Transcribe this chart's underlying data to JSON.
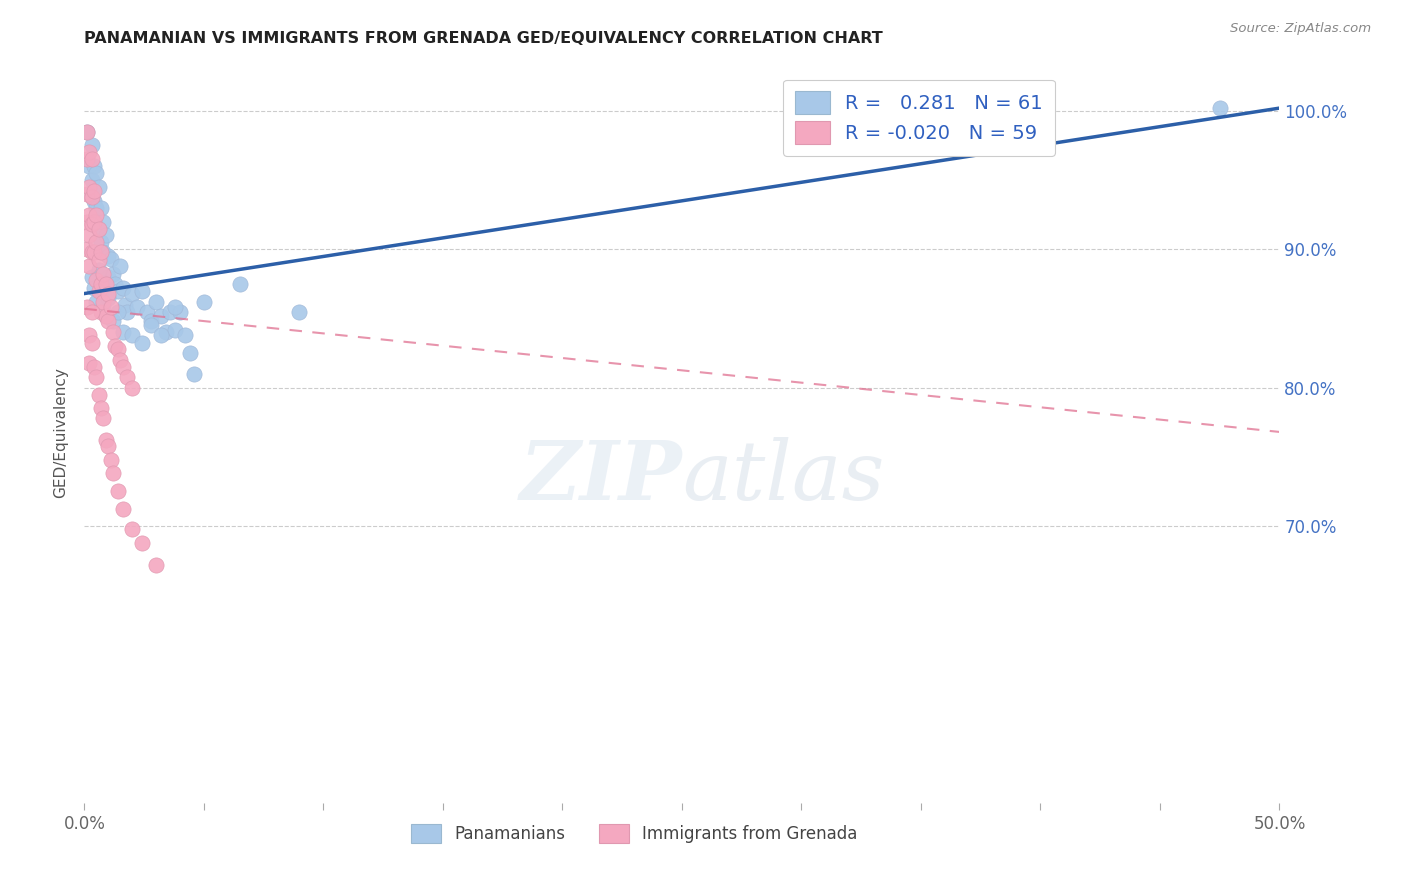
{
  "title": "PANAMANIAN VS IMMIGRANTS FROM GRENADA GED/EQUIVALENCY CORRELATION CHART",
  "source": "Source: ZipAtlas.com",
  "ylabel": "GED/Equivalency",
  "xlim": [
    0.0,
    0.5
  ],
  "ylim": [
    0.5,
    1.035
  ],
  "blue_color": "#a8c8e8",
  "pink_color": "#f4a8c0",
  "blue_line_color": "#2c5fa8",
  "pink_line_color": "#e07090",
  "watermark_zip": "ZIP",
  "watermark_atlas": "atlas",
  "blue_r": 0.281,
  "blue_n": 61,
  "pink_r": -0.02,
  "pink_n": 59,
  "blue_line_y0": 0.868,
  "blue_line_y1": 1.002,
  "pink_line_y0": 0.857,
  "pink_line_y1": 0.768,
  "blue_x": [
    0.001,
    0.002,
    0.002,
    0.003,
    0.003,
    0.004,
    0.004,
    0.005,
    0.005,
    0.006,
    0.006,
    0.007,
    0.007,
    0.008,
    0.008,
    0.009,
    0.01,
    0.01,
    0.011,
    0.012,
    0.013,
    0.014,
    0.015,
    0.016,
    0.017,
    0.018,
    0.02,
    0.022,
    0.024,
    0.026,
    0.028,
    0.03,
    0.032,
    0.034,
    0.036,
    0.038,
    0.04,
    0.042,
    0.044,
    0.046,
    0.003,
    0.004,
    0.005,
    0.006,
    0.007,
    0.008,
    0.009,
    0.01,
    0.012,
    0.014,
    0.016,
    0.02,
    0.024,
    0.028,
    0.032,
    0.038,
    0.05,
    0.065,
    0.09,
    0.34,
    0.475
  ],
  "blue_y": [
    0.985,
    0.96,
    0.94,
    0.975,
    0.95,
    0.96,
    0.935,
    0.955,
    0.93,
    0.945,
    0.915,
    0.93,
    0.905,
    0.92,
    0.898,
    0.91,
    0.895,
    0.88,
    0.893,
    0.882,
    0.875,
    0.87,
    0.888,
    0.872,
    0.86,
    0.855,
    0.868,
    0.858,
    0.87,
    0.855,
    0.848,
    0.862,
    0.852,
    0.84,
    0.855,
    0.842,
    0.855,
    0.838,
    0.825,
    0.81,
    0.88,
    0.872,
    0.862,
    0.885,
    0.87,
    0.86,
    0.852,
    0.865,
    0.848,
    0.855,
    0.84,
    0.838,
    0.832,
    0.845,
    0.838,
    0.858,
    0.862,
    0.875,
    0.855,
    0.992,
    1.002
  ],
  "pink_x": [
    0.001,
    0.001,
    0.001,
    0.001,
    0.001,
    0.002,
    0.002,
    0.002,
    0.002,
    0.002,
    0.003,
    0.003,
    0.003,
    0.003,
    0.004,
    0.004,
    0.004,
    0.005,
    0.005,
    0.005,
    0.006,
    0.006,
    0.006,
    0.007,
    0.007,
    0.007,
    0.008,
    0.008,
    0.009,
    0.009,
    0.01,
    0.01,
    0.011,
    0.012,
    0.013,
    0.014,
    0.015,
    0.016,
    0.018,
    0.02,
    0.001,
    0.002,
    0.002,
    0.003,
    0.003,
    0.004,
    0.005,
    0.006,
    0.007,
    0.008,
    0.009,
    0.01,
    0.011,
    0.012,
    0.014,
    0.016,
    0.02,
    0.024,
    0.03
  ],
  "pink_y": [
    0.985,
    0.965,
    0.94,
    0.92,
    0.9,
    0.97,
    0.945,
    0.925,
    0.91,
    0.888,
    0.965,
    0.938,
    0.918,
    0.898,
    0.942,
    0.92,
    0.898,
    0.925,
    0.905,
    0.878,
    0.915,
    0.892,
    0.87,
    0.898,
    0.875,
    0.855,
    0.882,
    0.862,
    0.875,
    0.852,
    0.868,
    0.848,
    0.858,
    0.84,
    0.83,
    0.828,
    0.82,
    0.815,
    0.808,
    0.8,
    0.858,
    0.838,
    0.818,
    0.855,
    0.832,
    0.815,
    0.808,
    0.795,
    0.785,
    0.778,
    0.762,
    0.758,
    0.748,
    0.738,
    0.725,
    0.712,
    0.698,
    0.688,
    0.672
  ]
}
